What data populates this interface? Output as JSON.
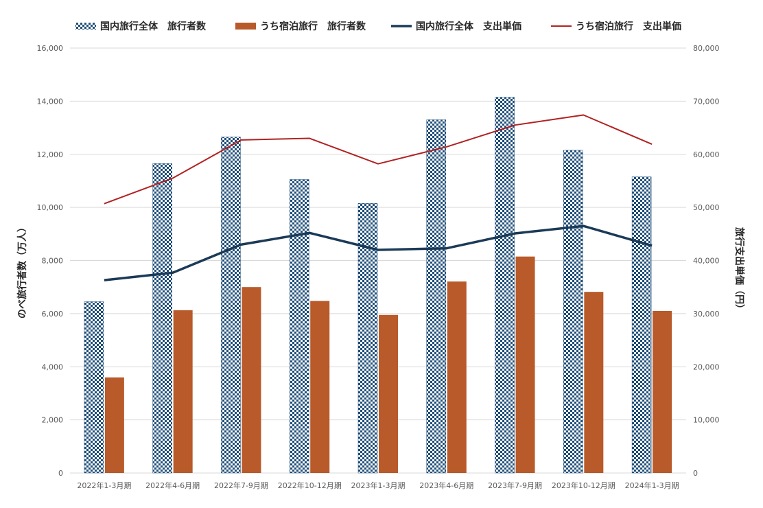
{
  "chart_data": {
    "type": "bar",
    "categories": [
      "2022年1-3月期",
      "2022年4-6月期",
      "2022年7-9月期",
      "2022年10-12月期",
      "2023年1-3月期",
      "2023年4-6月期",
      "2023年7-9月期",
      "2023年10-12月期",
      "2024年1-3月期"
    ],
    "series": [
      {
        "name": "国内旅行全体　旅行者数",
        "type": "bar",
        "axis": "left",
        "color": "#1f4e79",
        "pattern": "checkered",
        "values": [
          6450,
          11650,
          12650,
          11050,
          10150,
          13300,
          14150,
          12150,
          11150
        ]
      },
      {
        "name": "うち宿泊旅行　旅行者数",
        "type": "bar",
        "axis": "left",
        "color": "#b85a2a",
        "values": [
          3600,
          6130,
          7000,
          6480,
          5950,
          7210,
          8150,
          6820,
          6100
        ]
      },
      {
        "name": "国内旅行全体　支出単価",
        "type": "line",
        "axis": "right",
        "color": "#1b3a57",
        "values": [
          36300,
          37700,
          43000,
          45200,
          42000,
          42300,
          45100,
          46500,
          42800
        ]
      },
      {
        "name": "うち宿泊旅行　支出単価",
        "type": "line",
        "axis": "right",
        "color": "#b22222",
        "values": [
          50700,
          55500,
          62700,
          63000,
          58200,
          61400,
          65500,
          67400,
          61900
        ]
      }
    ],
    "ylabel": "のべ旅行者数（万人）",
    "y2label": "旅行支出単価（円）",
    "ylim": [
      0,
      16000
    ],
    "y2lim": [
      0,
      80000
    ],
    "yticks": [
      "0",
      "2,000",
      "4,000",
      "6,000",
      "8,000",
      "10,000",
      "12,000",
      "14,000",
      "16,000"
    ],
    "y2ticks": [
      "0",
      "10,000",
      "20,000",
      "30,000",
      "40,000",
      "50,000",
      "60,000",
      "70,000",
      "80,000"
    ],
    "grid": true,
    "legend_position": "top"
  }
}
